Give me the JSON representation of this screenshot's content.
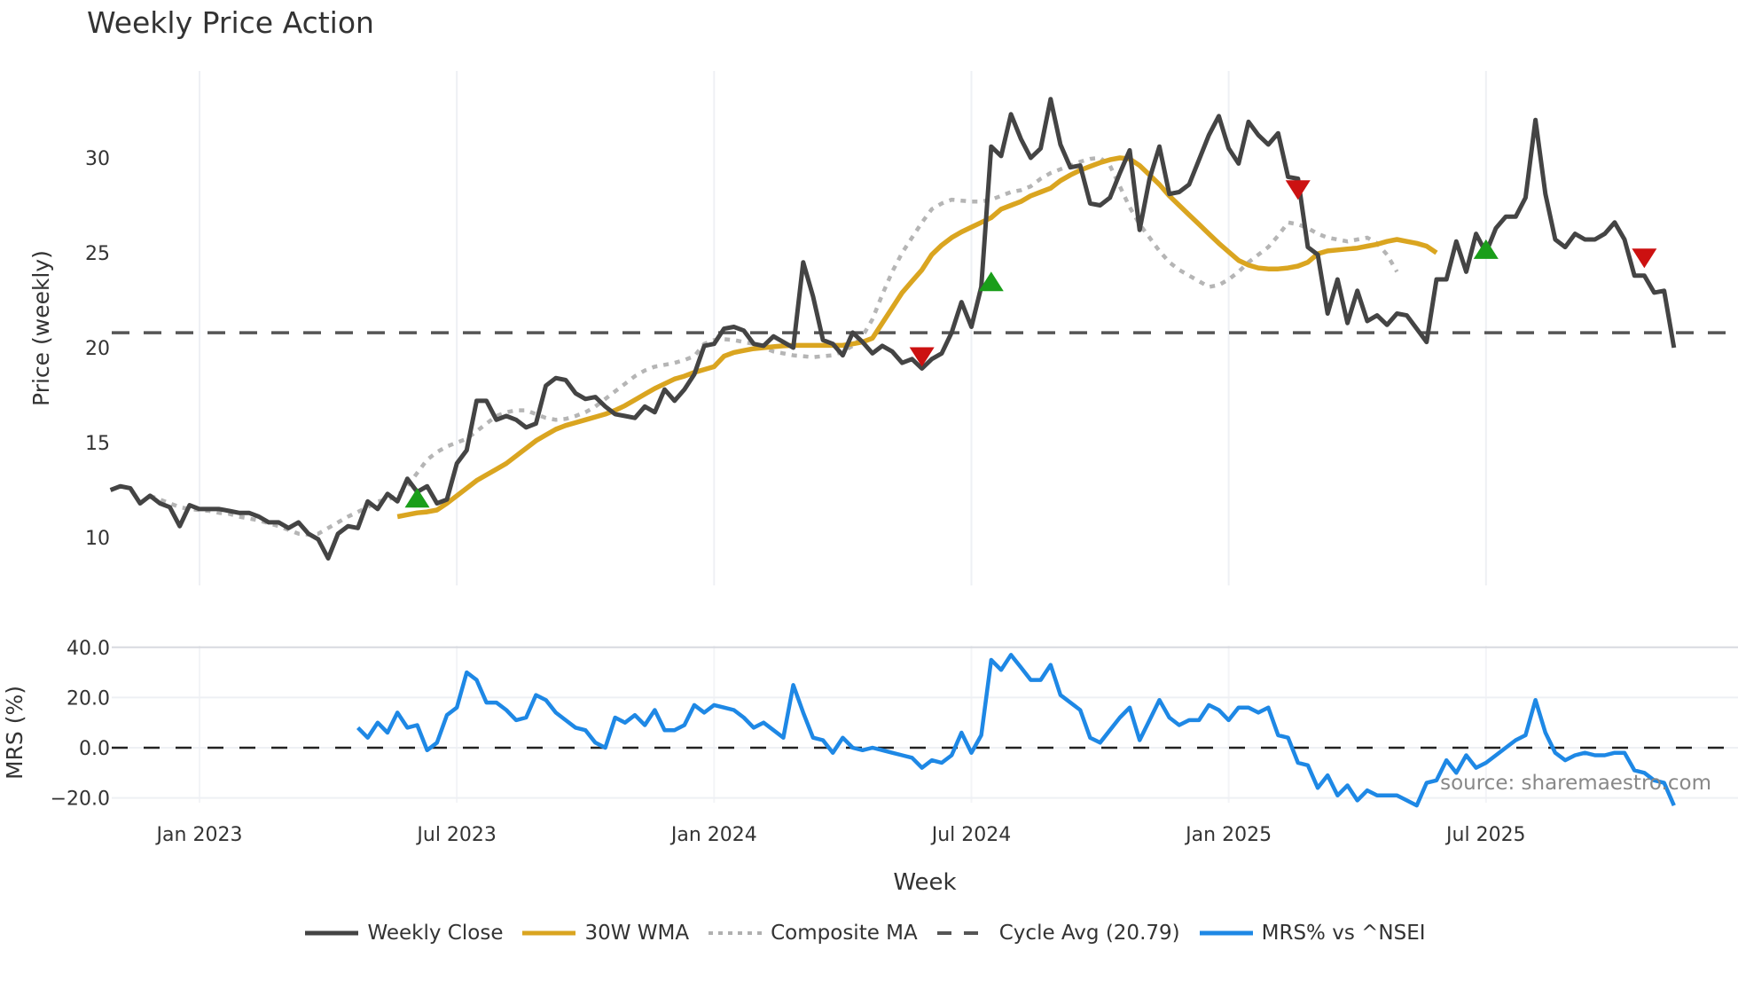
{
  "title": "Weekly Price Action",
  "source_annotation": "source: sharemaestro.com",
  "legend": [
    {
      "label": "Weekly Close",
      "color": "#444444",
      "style": "solid"
    },
    {
      "label": "30W WMA",
      "color": "#DAA520",
      "style": "solid"
    },
    {
      "label": "Composite MA",
      "color": "#B0B0B0",
      "style": "dotted"
    },
    {
      "label": "Cycle Avg (20.79)",
      "color": "#555555",
      "style": "dashed"
    },
    {
      "label": "MRS% vs ^NSEI",
      "color": "#1E88E5",
      "style": "solid"
    }
  ],
  "chart_data": [
    {
      "type": "line",
      "panel": "price",
      "title": "Weekly Price Action",
      "xlabel": "Week",
      "ylabel": "Price (weekly)",
      "ylim": [
        7.5,
        33.8
      ],
      "yticks": [
        10,
        15,
        20,
        25,
        30
      ],
      "xtick_labels": [
        "Jan 2023",
        "Jul 2023",
        "Jan 2024",
        "Jul 2024",
        "Jan 2025",
        "Jul 2025"
      ],
      "xtick_week_index": [
        9,
        35,
        61,
        87,
        113,
        139
      ],
      "x_start": "2022-10-31",
      "x_step": "1 week",
      "grid": true,
      "series": [
        {
          "name": "Weekly Close",
          "start_index": 0,
          "values": [
            12.5,
            12.7,
            12.6,
            11.8,
            12.2,
            11.8,
            11.6,
            10.6,
            11.7,
            11.5,
            11.5,
            11.5,
            11.4,
            11.3,
            11.3,
            11.1,
            10.8,
            10.8,
            10.5,
            10.8,
            10.2,
            9.9,
            8.9,
            10.2,
            10.6,
            10.5,
            11.9,
            11.5,
            12.3,
            11.9,
            13.1,
            12.4,
            12.7,
            11.8,
            12.0,
            13.9,
            14.6,
            17.2,
            17.2,
            16.2,
            16.4,
            16.2,
            15.8,
            16.0,
            18.0,
            18.4,
            18.3,
            17.6,
            17.3,
            17.4,
            16.9,
            16.5,
            16.4,
            16.3,
            16.9,
            16.6,
            17.8,
            17.2,
            17.8,
            18.6,
            20.1,
            20.2,
            21.0,
            21.1,
            20.9,
            20.2,
            20.1,
            20.6,
            20.3,
            20.0,
            24.5,
            22.7,
            20.4,
            20.2,
            19.6,
            20.8,
            20.3,
            19.7,
            20.1,
            19.8,
            19.2,
            19.4,
            18.9,
            19.4,
            19.7,
            20.8,
            22.4,
            21.1,
            23.2,
            30.6,
            30.1,
            32.3,
            31.0,
            30.0,
            30.5,
            33.1,
            30.7,
            29.5,
            29.6,
            27.6,
            27.5,
            27.9,
            29.2,
            30.4,
            26.2,
            28.9,
            30.6,
            28.1,
            28.2,
            28.6,
            29.9,
            31.2,
            32.2,
            30.5,
            29.7,
            31.9,
            31.2,
            30.7,
            31.3,
            29.0,
            28.9,
            25.3,
            24.9,
            21.8,
            23.6,
            21.3,
            23.0,
            21.4,
            21.7,
            21.2,
            21.8,
            21.7,
            21.0,
            20.3,
            23.6,
            23.6,
            25.6,
            24.0,
            26.0,
            25.0,
            26.3,
            26.9,
            26.9,
            27.9,
            32.0,
            28.1,
            25.7,
            25.3,
            26.0,
            25.7,
            25.7,
            26.0,
            26.6,
            25.7,
            23.8,
            23.8,
            22.9,
            23.0,
            20.0
          ]
        },
        {
          "name": "30W WMA",
          "start_index": 29,
          "values": [
            11.1,
            11.2,
            11.3,
            11.35,
            11.45,
            11.8,
            12.2,
            12.6,
            13.0,
            13.3,
            13.6,
            13.9,
            14.3,
            14.7,
            15.1,
            15.4,
            15.7,
            15.9,
            16.05,
            16.2,
            16.35,
            16.5,
            16.7,
            16.95,
            17.25,
            17.55,
            17.85,
            18.1,
            18.35,
            18.5,
            18.7,
            18.85,
            19.0,
            19.55,
            19.75,
            19.85,
            19.95,
            20.0,
            20.05,
            20.1,
            20.12,
            20.12,
            20.12,
            20.12,
            20.12,
            20.12,
            20.2,
            20.3,
            20.5,
            21.3,
            22.1,
            22.9,
            23.5,
            24.1,
            24.9,
            25.4,
            25.8,
            26.1,
            26.35,
            26.6,
            26.85,
            27.3,
            27.5,
            27.7,
            28.0,
            28.2,
            28.4,
            28.8,
            29.1,
            29.35,
            29.55,
            29.75,
            29.9,
            30.0,
            29.95,
            29.6,
            29.1,
            28.6,
            28.0,
            27.5,
            27.0,
            26.5,
            26.0,
            25.5,
            25.05,
            24.6,
            24.35,
            24.2,
            24.15,
            24.15,
            24.2,
            24.3,
            24.5,
            24.95,
            25.1,
            25.15,
            25.2,
            25.25,
            25.35,
            25.45,
            25.6,
            25.7,
            25.6,
            25.5,
            25.35,
            25.0
          ]
        },
        {
          "name": "Composite MA",
          "start_index": 4,
          "values": [
            12.2,
            12.0,
            11.8,
            11.6,
            11.5,
            11.45,
            11.4,
            11.3,
            11.25,
            11.1,
            11.0,
            10.9,
            10.75,
            10.6,
            10.4,
            10.2,
            10.15,
            10.2,
            10.5,
            10.8,
            11.1,
            11.35,
            11.6,
            11.9,
            12.0,
            12.2,
            12.7,
            13.4,
            14.1,
            14.5,
            14.8,
            15.0,
            15.2,
            15.6,
            16.0,
            16.4,
            16.6,
            16.7,
            16.7,
            16.5,
            16.3,
            16.2,
            16.25,
            16.4,
            16.6,
            16.9,
            17.3,
            17.7,
            18.1,
            18.5,
            18.8,
            19.0,
            19.1,
            19.2,
            19.35,
            19.55,
            20.2,
            20.4,
            20.45,
            20.4,
            20.3,
            20.2,
            20.0,
            19.8,
            19.7,
            19.6,
            19.55,
            19.5,
            19.55,
            19.6,
            19.8,
            20.1,
            20.6,
            21.5,
            22.8,
            24.0,
            25.0,
            25.8,
            26.6,
            27.3,
            27.6,
            27.8,
            27.75,
            27.7,
            27.7,
            27.8,
            28.0,
            28.2,
            28.3,
            28.5,
            28.9,
            29.2,
            29.4,
            29.6,
            29.8,
            29.95,
            30.0,
            29.6,
            28.5,
            27.4,
            26.5,
            25.8,
            25.1,
            24.5,
            24.1,
            23.8,
            23.5,
            23.2,
            23.3,
            23.6,
            24.0,
            24.5,
            24.9,
            25.3,
            25.9,
            26.6,
            26.5,
            26.3,
            26.0,
            25.8,
            25.7,
            25.6,
            25.7,
            25.8,
            25.5,
            24.9,
            24.0
          ]
        }
      ],
      "hlines": [
        {
          "name": "Cycle Avg (20.79)",
          "y": 20.79
        }
      ],
      "markers": [
        {
          "type": "buy",
          "shape": "triangle-up",
          "color": "#1A9E1A",
          "week_index": 31,
          "y": 12.0
        },
        {
          "type": "sell",
          "shape": "triangle-down",
          "color": "#CC1111",
          "week_index": 82,
          "y": 19.6
        },
        {
          "type": "buy",
          "shape": "triangle-up",
          "color": "#1A9E1A",
          "week_index": 89,
          "y": 23.4
        },
        {
          "type": "sell",
          "shape": "triangle-down",
          "color": "#CC1111",
          "week_index": 120,
          "y": 28.4
        },
        {
          "type": "buy",
          "shape": "triangle-up",
          "color": "#1A9E1A",
          "week_index": 139,
          "y": 25.1
        },
        {
          "type": "sell",
          "shape": "triangle-down",
          "color": "#CC1111",
          "week_index": 155,
          "y": 24.8
        }
      ]
    },
    {
      "type": "line",
      "panel": "mrs",
      "xlabel": "Week",
      "ylabel": "MRS (%)",
      "ylim": [
        -25,
        42
      ],
      "yticks": [
        -20.0,
        0.0,
        20.0,
        40.0
      ],
      "ytick_labels": [
        "−20.0",
        "0.0",
        "20.0",
        "40.0"
      ],
      "hlines": [
        {
          "name": "zero",
          "y": 0
        }
      ],
      "series": [
        {
          "name": "MRS% vs ^NSEI",
          "start_index": 25,
          "values": [
            8,
            4,
            10,
            6,
            14,
            8,
            9,
            -1,
            2,
            13,
            16,
            30,
            27,
            18,
            18,
            15,
            11,
            12,
            21,
            19,
            14,
            11,
            8,
            7,
            2,
            0,
            12,
            10,
            13,
            9,
            15,
            7,
            7,
            9,
            17,
            14,
            17,
            16,
            15,
            12,
            8,
            10,
            7,
            4,
            25,
            14,
            4,
            3,
            -2,
            4,
            0,
            -1,
            0,
            -1,
            -2,
            -3,
            -4,
            -8,
            -5,
            -6,
            -3,
            6,
            -2,
            5,
            35,
            31,
            37,
            32,
            27,
            27,
            33,
            21,
            18,
            15,
            4,
            2,
            7,
            12,
            16,
            3,
            11,
            19,
            12,
            9,
            11,
            11,
            17,
            15,
            11,
            16,
            16,
            14,
            16,
            5,
            4,
            -6,
            -7,
            -16,
            -11,
            -19,
            -15,
            -21,
            -17,
            -19,
            -19,
            -19,
            -21,
            -23,
            -14,
            -13,
            -5,
            -10,
            -3,
            -8,
            -6,
            -3,
            0,
            3,
            5,
            19,
            6,
            -2,
            -5,
            -3,
            -2,
            -3,
            -3,
            -2,
            -2,
            -9,
            -10,
            -13,
            -14,
            -23
          ]
        }
      ]
    }
  ]
}
